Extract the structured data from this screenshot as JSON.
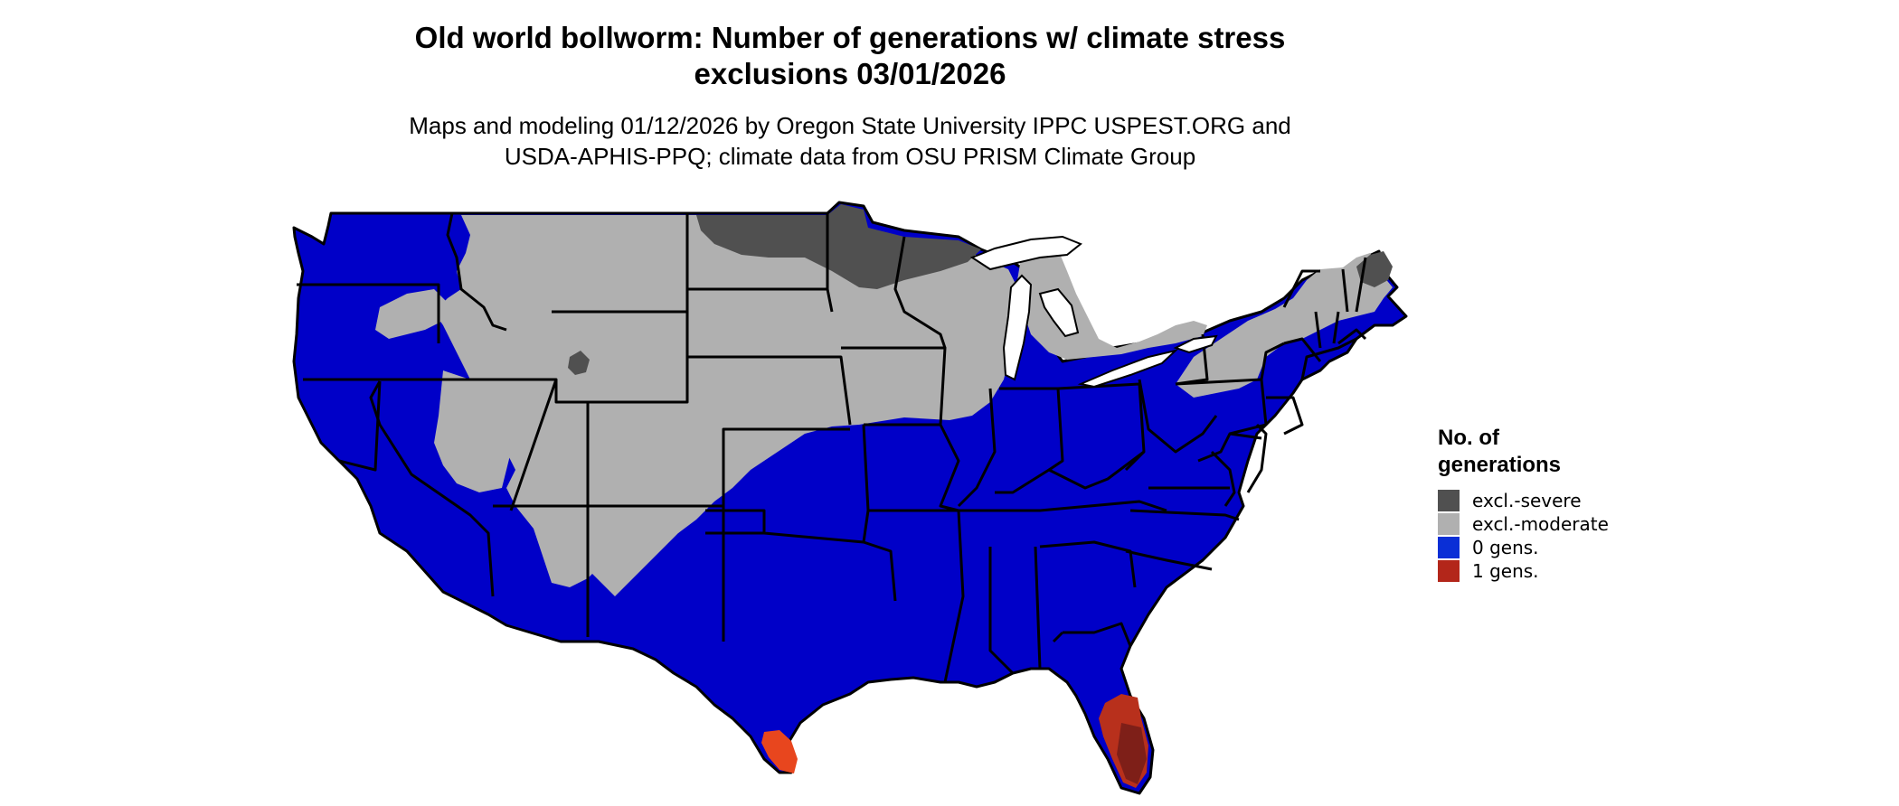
{
  "title_line1": "Old world bollworm: Number of generations w/ climate stress",
  "title_line2": "exclusions 03/01/2026",
  "subtitle_line1": "Maps and modeling 01/12/2026 by Oregon State University IPPC USPEST.ORG and",
  "subtitle_line2": "USDA-APHIS-PPQ; climate data from OSU PRISM Climate Group",
  "legend": {
    "title_line1": "No. of",
    "title_line2": "generations",
    "items": [
      {
        "label": "excl.-severe",
        "color": "#505050"
      },
      {
        "label": "excl.-moderate",
        "color": "#b0b0b0"
      },
      {
        "label": "0 gens.",
        "color": "#0a2fd6"
      },
      {
        "label": "1 gens.",
        "color": "#b3261a"
      }
    ]
  },
  "colors": {
    "zero_gens": "#0000c8",
    "moderate": "#b0b0b0",
    "severe": "#505050",
    "one_gen_light": "#e8461e",
    "one_gen_dark": "#8a1f1a",
    "borders": "#000000"
  }
}
